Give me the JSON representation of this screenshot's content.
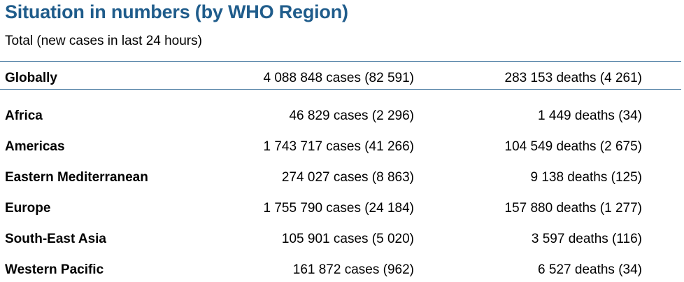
{
  "header": {
    "title": "Situation in numbers (by WHO Region)",
    "subtitle": "Total (new cases in last 24 hours)"
  },
  "global": {
    "region": "Globally",
    "cases": "4 088 848 cases (82 591)",
    "deaths": "283 153 deaths (4 261)"
  },
  "regions": [
    {
      "region": "Africa",
      "cases": "46 829 cases (2 296)",
      "deaths": "1 449 deaths (34)"
    },
    {
      "region": "Americas",
      "cases": "1 743 717 cases (41 266)",
      "deaths": "104 549 deaths (2 675)"
    },
    {
      "region": "Eastern Mediterranean",
      "cases": "274 027 cases (8 863)",
      "deaths": "9 138 deaths (125)"
    },
    {
      "region": "Europe",
      "cases": "1 755 790 cases (24 184)",
      "deaths": "157 880 deaths (1 277)"
    },
    {
      "region": "South-East Asia",
      "cases": "105 901 cases (5 020)",
      "deaths": "3 597 deaths (116)"
    },
    {
      "region": "Western Pacific",
      "cases": "161 872 cases (962)",
      "deaths": "6 527 deaths (34)"
    }
  ],
  "colors": {
    "title": "#1f5c8b",
    "rule": "#1f5c8b",
    "text": "#000000"
  }
}
